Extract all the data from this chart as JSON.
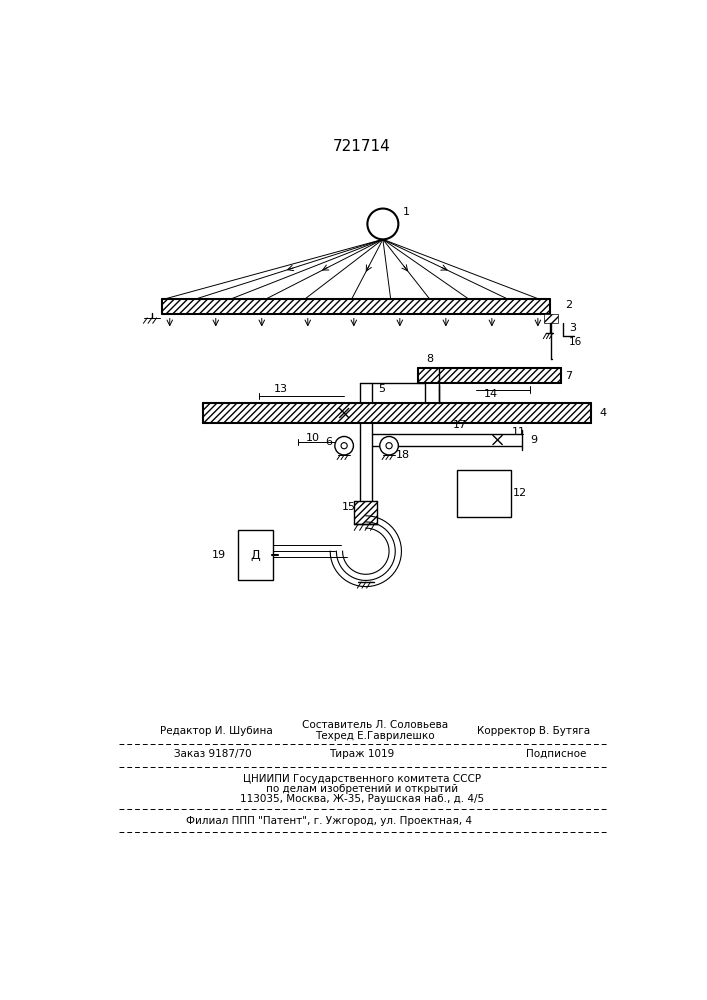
{
  "title": "721714",
  "bg_color": "#ffffff",
  "line_color": "#000000",
  "footer": {
    "line1_left": "Редактор И. Шубина",
    "line1_center_top": "Составитель Л. Соловьева",
    "line1_center_bot": "Техред Е.Гаврилешко",
    "line1_right": "Корректор В. Бутяга",
    "line2_left": "Заказ 9187/70",
    "line2_center": "Тираж 1019",
    "line2_right": "Подписное",
    "line3": "ЦНИИПИ Государственного комитета СССР",
    "line4": "по делам изобретений и открытий",
    "line5": "113035, Москва, Ж-35, Раушская наб., д. 4/5",
    "line6": "Филиал ППП \"Патент\", г. Ужгород, ул. Проектная, 4"
  }
}
